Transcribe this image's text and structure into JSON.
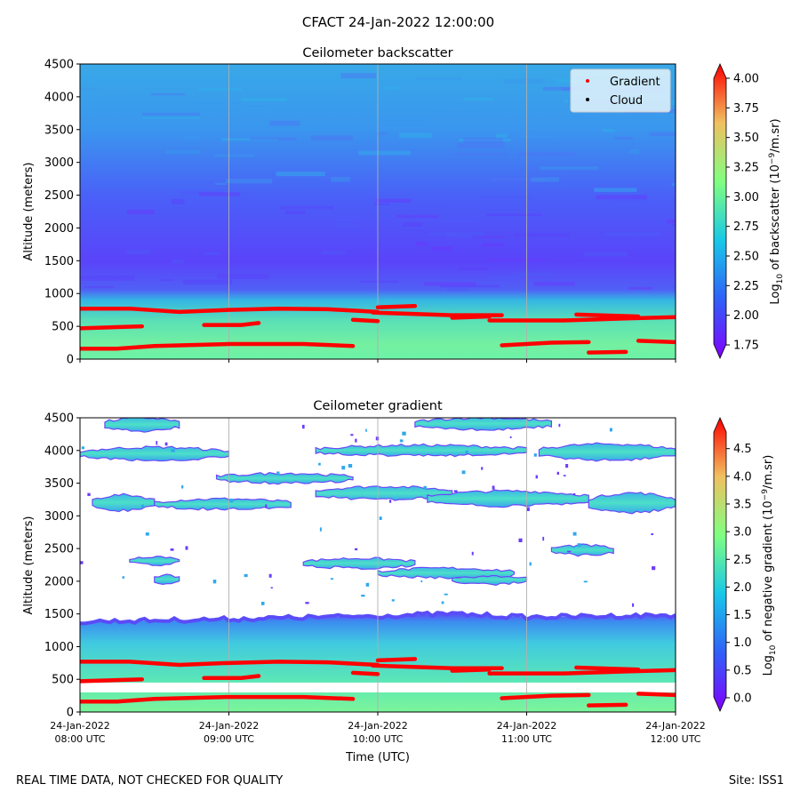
{
  "suptitle": "CFACT 24-Jan-2022 12:00:00",
  "footer_left": "REAL TIME DATA, NOT CHECKED FOR QUALITY",
  "footer_right": "Site: ISS1",
  "xlabel": "Time (UTC)",
  "x_ticks": [
    {
      "line1": "24-Jan-2022",
      "line2": "08:00 UTC"
    },
    {
      "line1": "24-Jan-2022",
      "line2": "09:00 UTC"
    },
    {
      "line1": "24-Jan-2022",
      "line2": "10:00 UTC"
    },
    {
      "line1": "24-Jan-2022",
      "line2": "11:00 UTC"
    },
    {
      "line1": "24-Jan-2022",
      "line2": "12:00 UTC"
    }
  ],
  "legend": [
    {
      "label": "Gradient",
      "color": "#ff0000"
    },
    {
      "label": "Cloud",
      "color": "#000000"
    }
  ],
  "chart_data": [
    {
      "type": "heatmap",
      "title": "Ceilometer backscatter",
      "ylabel": "Altitude (meters)",
      "xlabel": "",
      "xlim": [
        "08:00",
        "12:00"
      ],
      "ylim": [
        0,
        4500
      ],
      "y_ticks": [
        0,
        500,
        1000,
        1500,
        2000,
        2500,
        3000,
        3500,
        4000,
        4500
      ],
      "grid": "vertical lines at each hour",
      "legend_position": "top-right",
      "colorbar": {
        "label_main": "Log",
        "label_sub": "10",
        "label_rest": " of backscatter (10",
        "label_sup": "−9",
        "label_end": "/m.sr)",
        "range": [
          1.75,
          4.0
        ],
        "ticks": [
          "1.75",
          "2.00",
          "2.25",
          "2.50",
          "2.75",
          "3.00",
          "3.25",
          "3.50",
          "3.75",
          "4.00"
        ],
        "colormap": "rainbow"
      },
      "field_profile": [
        {
          "altitude": 0,
          "value": 2.85
        },
        {
          "altitude": 300,
          "value": 2.8
        },
        {
          "altitude": 600,
          "value": 2.72
        },
        {
          "altitude": 900,
          "value": 2.55
        },
        {
          "altitude": 1100,
          "value": 2.1
        },
        {
          "altitude": 1500,
          "value": 1.95
        },
        {
          "altitude": 2500,
          "value": 2.1
        },
        {
          "altitude": 3500,
          "value": 2.3
        },
        {
          "altitude": 4500,
          "value": 2.35
        }
      ],
      "gradient_layers": [
        [
          [
            "08:00",
            770
          ],
          [
            "08:20",
            770
          ],
          [
            "08:40",
            720
          ],
          [
            "09:00",
            750
          ],
          [
            "09:20",
            770
          ],
          [
            "09:40",
            760
          ],
          [
            "10:00",
            720
          ]
        ],
        [
          [
            "08:00",
            470
          ],
          [
            "08:25",
            500
          ]
        ],
        [
          [
            "08:50",
            520
          ],
          [
            "09:05",
            520
          ],
          [
            "09:12",
            550
          ]
        ],
        [
          [
            "08:00",
            160
          ],
          [
            "08:15",
            160
          ],
          [
            "08:30",
            200
          ],
          [
            "09:00",
            230
          ],
          [
            "09:30",
            230
          ],
          [
            "09:50",
            200
          ]
        ],
        [
          [
            "09:50",
            600
          ],
          [
            "10:00",
            580
          ]
        ],
        [
          [
            "09:58",
            710
          ],
          [
            "10:30",
            670
          ],
          [
            "10:50",
            670
          ]
        ],
        [
          [
            "10:00",
            790
          ],
          [
            "10:15",
            810
          ]
        ],
        [
          [
            "10:30",
            630
          ],
          [
            "10:45",
            650
          ]
        ],
        [
          [
            "10:45",
            590
          ],
          [
            "11:15",
            590
          ],
          [
            "11:40",
            620
          ],
          [
            "12:00",
            640
          ]
        ],
        [
          [
            "11:20",
            680
          ],
          [
            "11:45",
            650
          ]
        ],
        [
          [
            "10:50",
            210
          ],
          [
            "11:10",
            250
          ],
          [
            "11:25",
            260
          ]
        ],
        [
          [
            "11:25",
            100
          ],
          [
            "11:40",
            110
          ]
        ],
        [
          [
            "11:45",
            280
          ],
          [
            "12:00",
            260
          ]
        ]
      ]
    },
    {
      "type": "heatmap",
      "title": "Ceilometer gradient",
      "ylabel": "Altitude (meters)",
      "xlabel": "Time (UTC)",
      "xlim": [
        "08:00",
        "12:00"
      ],
      "ylim": [
        0,
        4500
      ],
      "y_ticks": [
        0,
        500,
        1000,
        1500,
        2000,
        2500,
        3000,
        3500,
        4000,
        4500
      ],
      "grid": "vertical lines at each hour",
      "colorbar": {
        "label_main": "Log",
        "label_sub": "10",
        "label_rest": " of negative gradient (10",
        "label_sup": "−9",
        "label_end": "/m.sr)",
        "range": [
          0.0,
          4.8
        ],
        "ticks": [
          "0.0",
          "0.5",
          "1.0",
          "1.5",
          "2.0",
          "2.5",
          "3.0",
          "3.5",
          "4.0",
          "4.5"
        ],
        "colormap": "rainbow"
      },
      "boundary_layer_top": [
        [
          0,
          1380
        ],
        [
          60,
          1420
        ],
        [
          120,
          1470
        ],
        [
          150,
          1500
        ],
        [
          180,
          1450
        ],
        [
          240,
          1480
        ]
      ],
      "clear_band": [
        450,
        300
      ],
      "patches": [
        {
          "t": [
            5,
            30
          ],
          "alt": [
            3080,
            3320
          ]
        },
        {
          "t": [
            30,
            85
          ],
          "alt": [
            3100,
            3260
          ]
        },
        {
          "t": [
            95,
            150
          ],
          "alt": [
            3250,
            3450
          ]
        },
        {
          "t": [
            140,
            205
          ],
          "alt": [
            3150,
            3380
          ]
        },
        {
          "t": [
            205,
            240
          ],
          "alt": [
            3050,
            3350
          ]
        },
        {
          "t": [
            0,
            60
          ],
          "alt": [
            3850,
            4050
          ]
        },
        {
          "t": [
            95,
            180
          ],
          "alt": [
            3920,
            4080
          ]
        },
        {
          "t": [
            185,
            240
          ],
          "alt": [
            3850,
            4100
          ]
        },
        {
          "t": [
            10,
            40
          ],
          "alt": [
            4300,
            4500
          ]
        },
        {
          "t": [
            135,
            190
          ],
          "alt": [
            4320,
            4500
          ]
        },
        {
          "t": [
            55,
            110
          ],
          "alt": [
            3500,
            3650
          ]
        },
        {
          "t": [
            90,
            135
          ],
          "alt": [
            2200,
            2350
          ]
        },
        {
          "t": [
            150,
            180
          ],
          "alt": [
            1950,
            2100
          ]
        },
        {
          "t": [
            20,
            40
          ],
          "alt": [
            2250,
            2380
          ]
        },
        {
          "t": [
            30,
            40
          ],
          "alt": [
            1950,
            2100
          ]
        },
        {
          "t": [
            120,
            175
          ],
          "alt": [
            2050,
            2200
          ]
        },
        {
          "t": [
            190,
            215
          ],
          "alt": [
            2400,
            2550
          ]
        }
      ]
    }
  ]
}
